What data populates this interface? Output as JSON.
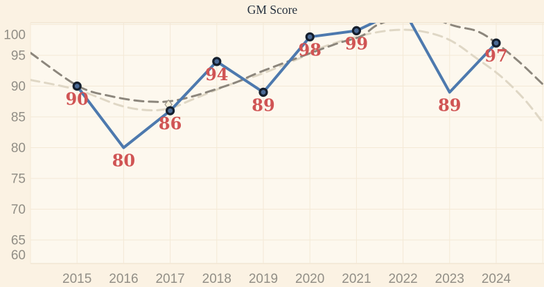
{
  "page": {
    "title": "GM Score"
  },
  "colors": {
    "background": "#fbf2e3",
    "plot_background": "#fdf8ee",
    "gridline": "#f4e9d6",
    "axis_line": "#ecdfc9",
    "series_line": "#4d79ae",
    "marker_fill": "#4c6b96",
    "marker_ring": "#151f2d",
    "trend_dark": "#8c867c",
    "trend_light": "#dfd7c5",
    "data_label": "#d05454",
    "tick_label": "#918e86",
    "title": "#26313e",
    "diamond_fill": "#f7f0da",
    "diamond_stroke": "#9d968a"
  },
  "chart_data": {
    "type": "line",
    "title": "GM Score",
    "xlabel": "",
    "ylabel": "",
    "x_tick_labels": [
      "2015",
      "2016",
      "2017",
      "2018",
      "2019",
      "2020",
      "2021",
      "2022",
      "2023",
      "2024"
    ],
    "y_tick_labels": [
      "100",
      "95",
      "90",
      "85",
      "80",
      "75",
      "70",
      "65",
      "60"
    ],
    "y_tick_values": [
      100,
      95,
      90,
      85,
      80,
      75,
      70,
      65,
      60
    ],
    "xlim_years": [
      2014,
      2025.05
    ],
    "ylim_visible": [
      61,
      100.3
    ],
    "grid": true,
    "legend": false,
    "main_series": {
      "name": "GM Score",
      "color": "#4d79ae",
      "points": [
        {
          "year": 2015,
          "value": 90,
          "label": "90",
          "marker": true
        },
        {
          "year": 2016,
          "value": 80,
          "label": "80",
          "marker": false
        },
        {
          "year": 2017,
          "value": 86,
          "label": "86",
          "marker": true,
          "diamond": true
        },
        {
          "year": 2018,
          "value": 94,
          "label": "94",
          "marker": true
        },
        {
          "year": 2019,
          "value": 89,
          "label": "89",
          "marker": true
        },
        {
          "year": 2020,
          "value": 98,
          "label": "98",
          "marker": true
        },
        {
          "year": 2021,
          "value": 99,
          "label": "99",
          "marker": true
        },
        {
          "year": 2022,
          "value": 102.6,
          "label": "",
          "marker": false,
          "clipped_above_axis": true,
          "estimated": true
        },
        {
          "year": 2023,
          "value": 89,
          "label": "89",
          "marker": false
        },
        {
          "year": 2024,
          "value": 97,
          "label": "97",
          "marker": true
        }
      ]
    },
    "trend_series": [
      {
        "name": "trend-dark-dashed",
        "color": "#8c867c",
        "style": "dashed",
        "points": [
          [
            2014,
            95.4
          ],
          [
            2015,
            90.1
          ],
          [
            2015.7,
            88.4
          ],
          [
            2016.5,
            87.5
          ],
          [
            2017.2,
            87.8
          ],
          [
            2018.3,
            90.3
          ],
          [
            2019,
            92.5
          ],
          [
            2020.5,
            96.7
          ],
          [
            2021.1,
            98.1
          ],
          [
            2021.5,
            100.1
          ],
          [
            2022.3,
            101.6
          ],
          [
            2023.1,
            99.8
          ],
          [
            2023.6,
            98.9
          ],
          [
            2024,
            97.0
          ],
          [
            2024.5,
            93.9
          ],
          [
            2025,
            90.3
          ]
        ]
      },
      {
        "name": "trend-light-dashed",
        "color": "#dfd7c5",
        "style": "dashed",
        "points": [
          [
            2014,
            91.0
          ],
          [
            2015,
            89.4
          ],
          [
            2015.9,
            86.9
          ],
          [
            2016.5,
            86.1
          ],
          [
            2017,
            86.4
          ],
          [
            2017.5,
            87.9
          ],
          [
            2018.3,
            90.3
          ],
          [
            2019,
            92.1
          ],
          [
            2019.8,
            94.6
          ],
          [
            2020.3,
            96.4
          ],
          [
            2021.1,
            98.2
          ],
          [
            2021.8,
            99.1
          ],
          [
            2022.4,
            98.9
          ],
          [
            2023,
            97.5
          ],
          [
            2023.6,
            94.4
          ],
          [
            2024.1,
            91.6
          ],
          [
            2024.6,
            87.9
          ],
          [
            2025,
            84.1
          ]
        ]
      }
    ]
  }
}
